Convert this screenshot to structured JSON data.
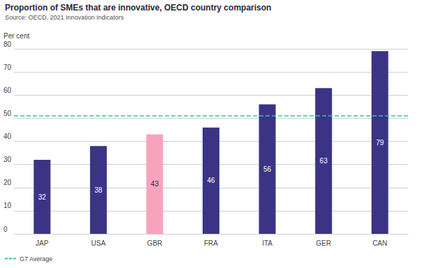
{
  "chart_data": {
    "type": "bar",
    "title": "Proportion of SMEs that are innovative, OECD country comparison",
    "subtitle": "Source: OECD, 2021 Innovation Indicators",
    "y_label": "Per cent",
    "categories": [
      "JAP",
      "USA",
      "GBR",
      "FRA",
      "ITA",
      "GER",
      "CAN"
    ],
    "values": [
      32,
      38,
      43,
      46,
      56,
      63,
      79
    ],
    "colors": [
      "#3b3486",
      "#3b3486",
      "#f7a3bd",
      "#3b3486",
      "#3b3486",
      "#3b3486",
      "#3b3486"
    ],
    "ylim": [
      0,
      80
    ],
    "yticks": [
      0,
      10,
      20,
      30,
      40,
      50,
      60,
      70,
      80
    ],
    "grid": true,
    "data_labels": true,
    "legend": "bottom-left",
    "reference_lines": [
      {
        "name": "G7 Average",
        "value": 51,
        "color": "#2ec4a0",
        "line_style": "dashed"
      }
    ]
  }
}
